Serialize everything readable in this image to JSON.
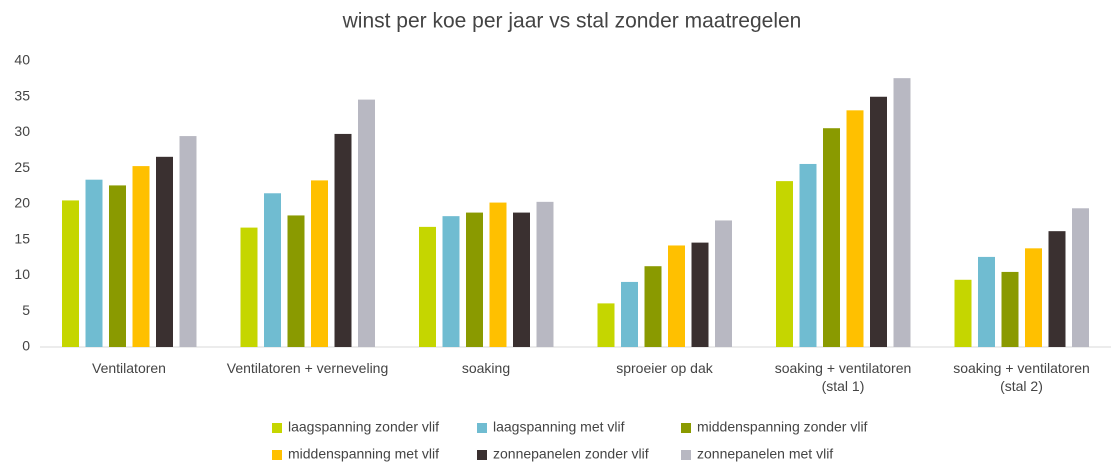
{
  "chart_data": {
    "type": "bar",
    "title": "winst per koe per jaar vs stal zonder maatregelen",
    "categories": [
      "Ventilatoren",
      "Ventilatoren + verneveling",
      "soaking",
      "sproeier op dak",
      "soaking + ventilatoren\n(stal 1)",
      "soaking + ventilatoren\n(stal 2)"
    ],
    "series": [
      {
        "name": "laagspanning zonder vlif",
        "color": "#c5d600",
        "values": [
          20.5,
          16.7,
          16.8,
          6.1,
          23.2,
          9.4
        ]
      },
      {
        "name": "laagspanning met vlif",
        "color": "#70bcd1",
        "values": [
          23.4,
          21.5,
          18.3,
          9.1,
          25.6,
          12.6
        ]
      },
      {
        "name": "middenspanning zonder vlif",
        "color": "#8a9a00",
        "values": [
          22.6,
          18.4,
          18.8,
          11.3,
          30.6,
          10.5
        ]
      },
      {
        "name": "middenspanning met vlif",
        "color": "#ffc000",
        "values": [
          25.3,
          23.3,
          20.2,
          14.2,
          33.1,
          13.8
        ]
      },
      {
        "name": "zonnepanelen zonder vlif",
        "color": "#3a3030",
        "values": [
          26.6,
          29.8,
          18.8,
          14.6,
          35.0,
          16.2
        ]
      },
      {
        "name": "zonnepanelen met vlif",
        "color": "#b8b8c2",
        "values": [
          29.5,
          34.6,
          20.3,
          17.7,
          37.6,
          19.4
        ]
      }
    ],
    "ylim": [
      0,
      40
    ],
    "yticks": [
      0,
      5,
      10,
      15,
      20,
      25,
      30,
      35,
      40
    ],
    "grid": false
  }
}
